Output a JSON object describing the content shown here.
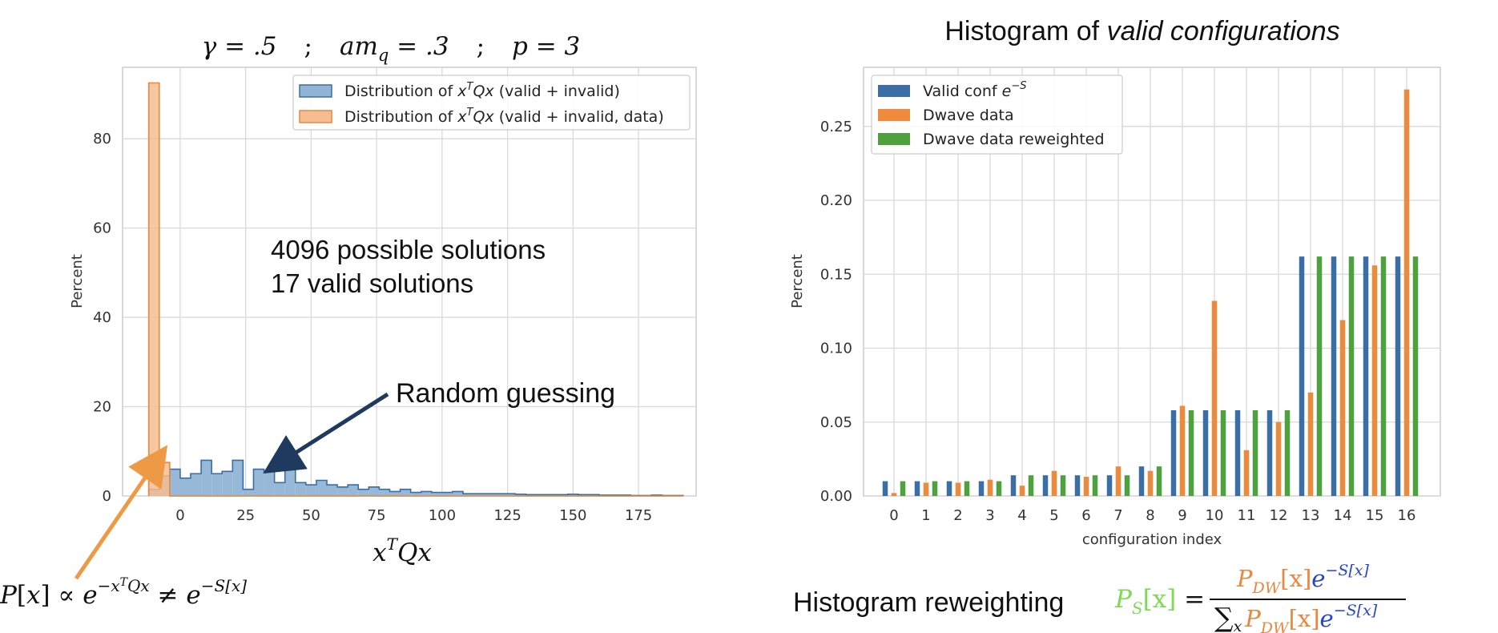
{
  "chart_data": [
    {
      "type": "histogram",
      "title": "γ = .5   ;   am_q = .3   ;   p = 3",
      "title_parts": {
        "gamma": "γ = .5",
        "sep": ";",
        "amq": "am",
        "amq_sub": "q",
        "amq_val": " = .3",
        "p": "p = 3"
      },
      "xlabel": "x^T Qx",
      "xlabel_parts": {
        "base": "x",
        "sup": "T",
        "rest": "Qx"
      },
      "ylabel": "Percent",
      "xlim": [
        -22,
        197
      ],
      "ylim": [
        0,
        96
      ],
      "x_ticks": [
        0,
        25,
        50,
        75,
        100,
        125,
        150,
        175
      ],
      "y_ticks": [
        0,
        20,
        40,
        60,
        80
      ],
      "grid": true,
      "legend_position": "top-right",
      "series": [
        {
          "name": "Distribution of xᵀQx (valid + invalid)",
          "legend_parts": {
            "pre": "Distribution of ",
            "x": "x",
            "sup": "T",
            "qx": "Qx",
            "post": " (valid + invalid)"
          },
          "color_fill": "#92b4d6",
          "color_edge": "#3a6ea5",
          "bin_start": -12,
          "bin_width": 4,
          "values": [
            1.5,
            4.5,
            6,
            4,
            5,
            8,
            5,
            5.5,
            8,
            1.5,
            6,
            5.5,
            3,
            6,
            3,
            2.5,
            3.5,
            2.5,
            2,
            2.5,
            1.5,
            2,
            1.5,
            1,
            1.5,
            0.8,
            1,
            0.8,
            0.8,
            1,
            0.5,
            0.5,
            0.5,
            0.5,
            0.5,
            0.4,
            0.3,
            0.3,
            0.3,
            0.3,
            0.4,
            0.3,
            0.3,
            0.2,
            0.2,
            0.2,
            0.1,
            0.1,
            0.2,
            0.1,
            0.1
          ]
        },
        {
          "name": "Distribution of xᵀQx (valid + invalid, data)",
          "legend_parts": {
            "pre": "Distribution of ",
            "x": "x",
            "sup": "T",
            "qx": "Qx",
            "post": " (valid + invalid, data)"
          },
          "color_fill": "#f6bd92",
          "color_edge": "#e8873e",
          "bin_start": -12,
          "bin_width": 4,
          "values": [
            92.5,
            7.5,
            0,
            0,
            0,
            0,
            0,
            0,
            0,
            0,
            0,
            0,
            0,
            0,
            0,
            0,
            0,
            0,
            0,
            0,
            0,
            0,
            0,
            0,
            0,
            0,
            0,
            0,
            0,
            0,
            0,
            0,
            0,
            0,
            0,
            0,
            0,
            0,
            0,
            0,
            0,
            0,
            0,
            0,
            0,
            0,
            0,
            0,
            0,
            0,
            0
          ]
        }
      ],
      "annotations": {
        "possible": "4096 possible solutions",
        "valid": "17 valid solutions",
        "random": "Random guessing",
        "random_target": [
          35,
          6
        ],
        "orange_target": [
          -11,
          7
        ],
        "formula_parts": {
          "p": "P",
          "lb": "[",
          "x": "x",
          "rb": "]",
          "prop": " ∝ ",
          "e": "e",
          "sup1": "−x",
          "sup1T": "T",
          "sup1Qx": "Qx",
          "neq": " ≠ ",
          "sup2": "−S[x]"
        }
      }
    },
    {
      "type": "bar",
      "title": "Histogram of valid configurations",
      "title_parts": {
        "plain": "Histogram of ",
        "italic": "valid configurations"
      },
      "xlabel": "configuration index",
      "ylabel": "Percent",
      "ylim": [
        0,
        0.29
      ],
      "y_ticks": [
        "0.00",
        "0.05",
        "0.10",
        "0.15",
        "0.20",
        "0.25"
      ],
      "grid": true,
      "legend_position": "top-left",
      "categories": [
        "0",
        "1",
        "2",
        "3",
        "4",
        "5",
        "6",
        "7",
        "8",
        "9",
        "10",
        "11",
        "12",
        "13",
        "14",
        "15",
        "16"
      ],
      "series": [
        {
          "name": "Valid conf e^{-S}",
          "legend_parts": {
            "pre": "Valid conf ",
            "e": "e",
            "sup": "−S"
          },
          "color": "#3a6ea5",
          "values": [
            0.01,
            0.01,
            0.01,
            0.01,
            0.014,
            0.014,
            0.014,
            0.014,
            0.02,
            0.058,
            0.058,
            0.058,
            0.058,
            0.162,
            0.162,
            0.162,
            0.162
          ]
        },
        {
          "name": "Dwave data",
          "color": "#ee8a3c",
          "values": [
            0.002,
            0.009,
            0.009,
            0.011,
            0.007,
            0.017,
            0.013,
            0.02,
            0.017,
            0.061,
            0.132,
            0.031,
            0.05,
            0.07,
            0.119,
            0.156,
            0.275
          ]
        },
        {
          "name": "Dwave data reweighted",
          "color": "#4fa03e",
          "values": [
            0.01,
            0.01,
            0.01,
            0.01,
            0.014,
            0.014,
            0.014,
            0.014,
            0.02,
            0.058,
            0.058,
            0.058,
            0.058,
            0.162,
            0.162,
            0.162,
            0.162
          ]
        }
      ],
      "annotations": {
        "reweight_label": "Histogram reweighting",
        "formula_parts": {
          "P": "P",
          "S": "S",
          "arg": "[x]",
          "eq": " = ",
          "num_P": "P",
          "num_sub": "DW",
          "num_arg": "[x]",
          "e": "e",
          "esup": "−S[x]",
          "sum": "∑",
          "sum_sub": "x"
        },
        "formula_colors": {
          "green": "#7ed957",
          "orange": "#e8873e",
          "blue": "#2445c9"
        }
      }
    }
  ]
}
